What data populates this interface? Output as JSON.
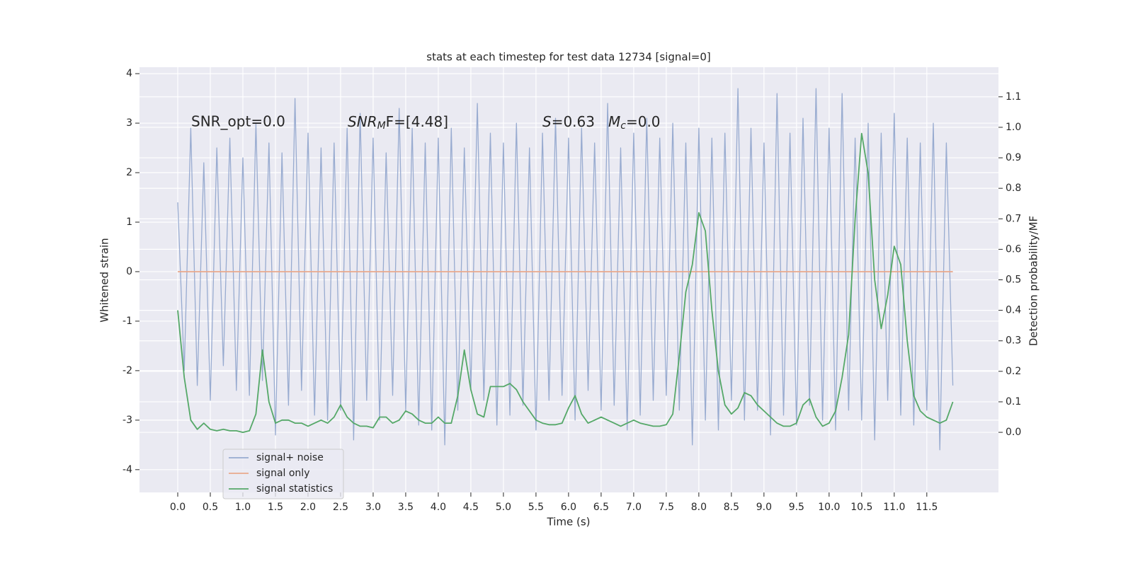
{
  "chart_data": {
    "type": "line",
    "title": "stats at each timestep for test data 12734 [signal=0]",
    "xlabel": "Time (s)",
    "ylabel": "Whitened strain",
    "y2label": "Detection probability/MF",
    "annotations": [
      "SNR_opt=0.0",
      [
        "SNR",
        "M",
        "F=[4.48]"
      ],
      [
        "S",
        "=0.63"
      ],
      [
        "M",
        "c",
        "=0.0"
      ]
    ],
    "grid": true,
    "legend": "lower left",
    "xlim": [
      -0.587,
      12.6
    ],
    "xticks": [
      {
        "value": 0,
        "label": "0.0"
      },
      0.5,
      {
        "value": 1,
        "label": "1.0"
      },
      1.5,
      {
        "value": 2,
        "label": "2.0"
      },
      2.5,
      {
        "value": 3,
        "label": "3.0"
      },
      3.5,
      {
        "value": 4,
        "label": "4.0"
      },
      4.5,
      {
        "value": 5,
        "label": "5.0"
      },
      5.5,
      {
        "value": 6,
        "label": "6.0"
      },
      6.5,
      {
        "value": 7,
        "label": "7.0"
      },
      7.5,
      {
        "value": 8,
        "label": "8.0"
      },
      8.5,
      {
        "value": 9,
        "label": "9.0"
      },
      9.5,
      {
        "value": 10,
        "label": "10.0"
      },
      10.5,
      {
        "value": 11,
        "label": "11.0"
      },
      11.5
    ],
    "ylim": [
      -4.46,
      4.13
    ],
    "yticks": [
      -4,
      -3,
      -2,
      -1,
      0,
      1,
      2,
      3,
      4
    ],
    "y2lim": [
      -0.197,
      1.197
    ],
    "y2ticks": [
      {
        "value": 0,
        "label": "0.0"
      },
      0.1,
      0.2,
      0.3,
      0.4,
      0.5,
      0.6,
      0.7,
      0.8,
      0.9,
      {
        "value": 1,
        "label": "1.0"
      },
      1.1
    ],
    "x": [
      0,
      0.1,
      0.2,
      0.3,
      0.4,
      0.5,
      0.6,
      0.7,
      0.8,
      0.9,
      1,
      1.1,
      1.2,
      1.3,
      1.4,
      1.5,
      1.6,
      1.7,
      1.8,
      1.9,
      2,
      2.1,
      2.2,
      2.3,
      2.4,
      2.5,
      2.6,
      2.7,
      2.8,
      2.9,
      3,
      3.1,
      3.2,
      3.3,
      3.4,
      3.5,
      3.6,
      3.7,
      3.8,
      3.9,
      4,
      4.1,
      4.2,
      4.3,
      4.4,
      4.5,
      4.6,
      4.7,
      4.8,
      4.9,
      5,
      5.1,
      5.2,
      5.3,
      5.4,
      5.5,
      5.6,
      5.7,
      5.8,
      5.9,
      6,
      6.1,
      6.2,
      6.3,
      6.4,
      6.5,
      6.6,
      6.7,
      6.8,
      6.9,
      7,
      7.1,
      7.2,
      7.3,
      7.4,
      7.5,
      7.6,
      7.7,
      7.8,
      7.9,
      8,
      8.1,
      8.2,
      8.3,
      8.4,
      8.5,
      8.6,
      8.7,
      8.8,
      8.9,
      9,
      9.1,
      9.2,
      9.3,
      9.4,
      9.5,
      9.6,
      9.7,
      9.8,
      9.9,
      10,
      10.1,
      10.2,
      10.3,
      10.4,
      10.5,
      10.6,
      10.7,
      10.8,
      10.9,
      11,
      11.1,
      11.2,
      11.3,
      11.4,
      11.5,
      11.6,
      11.7,
      11.8,
      11.9
    ],
    "series": [
      {
        "name": "signal+ noise",
        "color": "#98abd0",
        "values": [
          1.4,
          -2.0,
          2.9,
          -2.3,
          2.2,
          -2.6,
          2.5,
          -1.9,
          2.7,
          -2.4,
          2.3,
          -2.5,
          3.0,
          -2.2,
          2.6,
          -3.3,
          2.4,
          -2.7,
          3.5,
          -2.4,
          2.8,
          -2.9,
          2.5,
          -3.0,
          2.6,
          -2.8,
          2.9,
          -3.4,
          3.2,
          -2.6,
          2.7,
          -3.0,
          2.4,
          -2.5,
          3.3,
          -2.8,
          2.9,
          -3.1,
          2.6,
          -3.2,
          2.7,
          -3.5,
          2.9,
          -2.8,
          2.5,
          -2.4,
          3.4,
          -2.6,
          2.8,
          -3.1,
          2.6,
          -2.9,
          3.0,
          -2.7,
          2.5,
          -3.2,
          2.8,
          -2.6,
          3.1,
          -2.5,
          2.7,
          -3.0,
          2.9,
          -2.4,
          2.6,
          -2.8,
          3.4,
          -2.7,
          2.5,
          -3.2,
          2.8,
          -2.9,
          3.1,
          -2.6,
          2.7,
          -2.5,
          3.0,
          -2.8,
          2.6,
          -3.5,
          2.9,
          -3.0,
          2.7,
          -3.2,
          2.8,
          -2.6,
          3.7,
          -3.0,
          2.9,
          -2.8,
          2.6,
          -3.3,
          3.6,
          -2.9,
          2.8,
          -3.1,
          3.1,
          -2.7,
          3.7,
          -3.0,
          2.9,
          -3.2,
          3.6,
          -2.8,
          2.7,
          -3.0,
          3.0,
          -3.4,
          2.8,
          -2.6,
          3.2,
          -2.9,
          2.7,
          -3.1,
          2.6,
          -2.8,
          3.0,
          -3.6,
          2.6,
          -2.3
        ]
      },
      {
        "name": "signal only",
        "color": "#e9a98c",
        "values": [
          0,
          0,
          0,
          0,
          0,
          0,
          0,
          0,
          0,
          0,
          0,
          0,
          0,
          0,
          0,
          0,
          0,
          0,
          0,
          0,
          0,
          0,
          0,
          0,
          0,
          0,
          0,
          0,
          0,
          0,
          0,
          0,
          0,
          0,
          0,
          0,
          0,
          0,
          0,
          0,
          0,
          0,
          0,
          0,
          0,
          0,
          0,
          0,
          0,
          0,
          0,
          0,
          0,
          0,
          0,
          0,
          0,
          0,
          0,
          0,
          0,
          0,
          0,
          0,
          0,
          0,
          0,
          0,
          0,
          0,
          0,
          0,
          0,
          0,
          0,
          0,
          0,
          0,
          0,
          0,
          0,
          0,
          0,
          0,
          0,
          0,
          0,
          0,
          0,
          0,
          0,
          0,
          0,
          0,
          0,
          0,
          0,
          0,
          0,
          0,
          0,
          0,
          0,
          0,
          0,
          0,
          0,
          0,
          0,
          0,
          0,
          0,
          0,
          0,
          0,
          0,
          0,
          0,
          0,
          0
        ]
      },
      {
        "name": "signal statistics",
        "color": "#55a868",
        "axis": "y2",
        "values": [
          0.4,
          0.18,
          0.04,
          0.01,
          0.03,
          0.01,
          0.005,
          0.01,
          0.005,
          0.005,
          0.0,
          0.005,
          0.06,
          0.27,
          0.1,
          0.03,
          0.04,
          0.04,
          0.03,
          0.03,
          0.02,
          0.03,
          0.04,
          0.03,
          0.05,
          0.09,
          0.05,
          0.03,
          0.02,
          0.02,
          0.015,
          0.05,
          0.05,
          0.03,
          0.04,
          0.07,
          0.06,
          0.04,
          0.03,
          0.03,
          0.05,
          0.03,
          0.03,
          0.12,
          0.27,
          0.14,
          0.06,
          0.05,
          0.15,
          0.15,
          0.15,
          0.16,
          0.14,
          0.1,
          0.07,
          0.04,
          0.03,
          0.025,
          0.025,
          0.03,
          0.08,
          0.12,
          0.06,
          0.03,
          0.04,
          0.05,
          0.04,
          0.03,
          0.02,
          0.03,
          0.04,
          0.03,
          0.025,
          0.02,
          0.02,
          0.025,
          0.06,
          0.25,
          0.46,
          0.55,
          0.72,
          0.66,
          0.4,
          0.2,
          0.09,
          0.06,
          0.08,
          0.13,
          0.12,
          0.09,
          0.07,
          0.05,
          0.03,
          0.02,
          0.02,
          0.03,
          0.09,
          0.11,
          0.05,
          0.02,
          0.03,
          0.07,
          0.18,
          0.32,
          0.7,
          0.98,
          0.85,
          0.5,
          0.34,
          0.45,
          0.61,
          0.55,
          0.3,
          0.12,
          0.07,
          0.05,
          0.04,
          0.03,
          0.04,
          0.1
        ]
      }
    ]
  }
}
